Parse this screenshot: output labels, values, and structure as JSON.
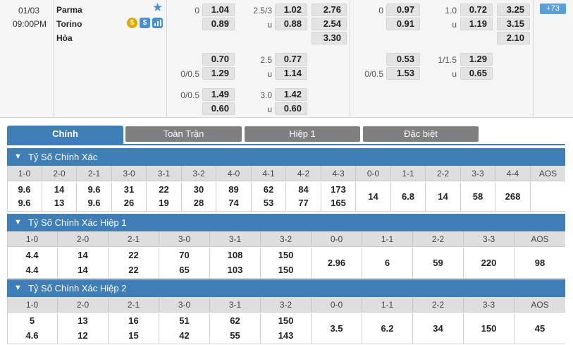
{
  "match": {
    "date": "01/03",
    "time": "09:00PM",
    "home": "Parma",
    "away": "Torino",
    "draw": "Hòa",
    "more_count": "73"
  },
  "odds_full": {
    "hdp_rows": [
      {
        "line": "0",
        "home": "1.04",
        "away": "0.89"
      },
      {
        "line": "",
        "home": "0.70",
        "away": "1.29",
        "line2": "0/0.5"
      },
      {
        "line": "0/0.5",
        "home": "1.49",
        "away": "0.60"
      }
    ],
    "ou_rows": [
      {
        "line": "2.5/3",
        "over": "1.02",
        "u": "u",
        "under": "0.88"
      },
      {
        "line": "2.5",
        "over": "0.77",
        "u": "u",
        "under": "1.14"
      },
      {
        "line": "3.0",
        "over": "1.42",
        "u": "u",
        "under": "0.60"
      }
    ],
    "x12": [
      "2.76",
      "2.54",
      "3.30"
    ]
  },
  "odds_half": {
    "hdp_rows": [
      {
        "line": "0",
        "home": "0.97",
        "away": "0.91"
      },
      {
        "line": "0/0.5",
        "home": "0.53",
        "away": "1.53"
      }
    ],
    "ou_rows": [
      {
        "line": "1.0",
        "over": "0.72",
        "u": "u",
        "under": "1.19"
      },
      {
        "line": "1/1.5",
        "over": "1.29",
        "u": "u",
        "under": "0.65"
      }
    ],
    "x12": [
      "3.25",
      "3.15",
      "2.10"
    ]
  },
  "tabs": [
    "Chính",
    "Toàn Trận",
    "Hiệp 1",
    "Đặc biệt"
  ],
  "sections": [
    {
      "title": "Tỷ Số Chính Xác",
      "headers": [
        "1-0",
        "2-0",
        "2-1",
        "3-0",
        "3-1",
        "3-2",
        "4-0",
        "4-1",
        "4-2",
        "4-3",
        "0-0",
        "1-1",
        "2-2",
        "3-3",
        "4-4",
        "AOS"
      ],
      "top": [
        "9.6",
        "14",
        "9.6",
        "31",
        "22",
        "30",
        "89",
        "62",
        "84",
        "173"
      ],
      "bottom": [
        "9.6",
        "13",
        "9.6",
        "26",
        "19",
        "28",
        "74",
        "53",
        "77",
        "165"
      ],
      "single": [
        "14",
        "6.8",
        "14",
        "58",
        "268"
      ]
    },
    {
      "title": "Tỷ Số Chính Xác Hiệp 1",
      "headers": [
        "1-0",
        "2-0",
        "2-1",
        "3-0",
        "3-1",
        "3-2",
        "0-0",
        "1-1",
        "2-2",
        "3-3",
        "AOS"
      ],
      "top": [
        "4.4",
        "14",
        "22",
        "70",
        "108",
        "150"
      ],
      "bottom": [
        "4.4",
        "14",
        "22",
        "65",
        "103",
        "150"
      ],
      "single": [
        "2.96",
        "6",
        "59",
        "220",
        "98"
      ]
    },
    {
      "title": "Tỷ Số Chính Xác Hiệp 2",
      "headers": [
        "1-0",
        "2-0",
        "2-1",
        "3-0",
        "3-1",
        "3-2",
        "0-0",
        "1-1",
        "2-2",
        "3-3",
        "AOS"
      ],
      "top": [
        "5",
        "13",
        "16",
        "51",
        "62",
        "150"
      ],
      "bottom": [
        "4.6",
        "12",
        "15",
        "42",
        "55",
        "143"
      ],
      "single": [
        "3.5",
        "6.2",
        "34",
        "150",
        "45"
      ]
    }
  ],
  "colors": {
    "accent": "#3f7eb6",
    "tab_inactive": "#7f7f7f",
    "star": "#4a8fd6"
  },
  "icons": [
    "star-icon",
    "coin-icon",
    "dollar-icon",
    "stats-icon",
    "chevron-down-icon"
  ]
}
